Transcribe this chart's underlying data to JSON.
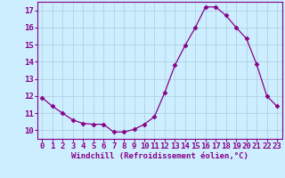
{
  "x": [
    0,
    1,
    2,
    3,
    4,
    5,
    6,
    7,
    8,
    9,
    10,
    11,
    12,
    13,
    14,
    15,
    16,
    17,
    18,
    19,
    20,
    21,
    22,
    23
  ],
  "y": [
    11.9,
    11.4,
    11.0,
    10.6,
    10.4,
    10.35,
    10.35,
    9.9,
    9.9,
    10.05,
    10.35,
    10.8,
    12.2,
    13.8,
    14.95,
    16.0,
    17.2,
    17.2,
    16.7,
    16.0,
    15.35,
    13.85,
    12.0,
    11.4
  ],
  "line_color": "#880088",
  "marker": "D",
  "marker_size": 2.5,
  "xlabel": "Windchill (Refroidissement éolien,°C)",
  "xlim": [
    -0.5,
    23.5
  ],
  "ylim": [
    9.5,
    17.5
  ],
  "yticks": [
    10,
    11,
    12,
    13,
    14,
    15,
    16,
    17
  ],
  "xticks": [
    0,
    1,
    2,
    3,
    4,
    5,
    6,
    7,
    8,
    9,
    10,
    11,
    12,
    13,
    14,
    15,
    16,
    17,
    18,
    19,
    20,
    21,
    22,
    23
  ],
  "bg_color": "#cceeff",
  "grid_color": "#aaccdd",
  "xlabel_fontsize": 6.5,
  "tick_fontsize": 6.5
}
